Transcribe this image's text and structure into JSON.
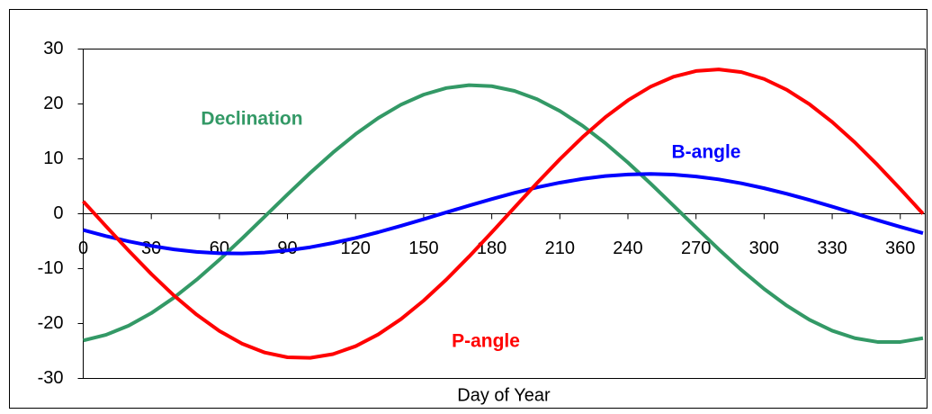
{
  "chart_data": {
    "type": "line",
    "x_label": "Day of Year",
    "x": [
      0,
      10,
      20,
      30,
      40,
      50,
      60,
      70,
      80,
      90,
      100,
      110,
      120,
      130,
      140,
      150,
      160,
      170,
      180,
      190,
      200,
      210,
      220,
      230,
      240,
      250,
      260,
      270,
      280,
      290,
      300,
      310,
      320,
      330,
      340,
      350,
      360,
      370
    ],
    "series": [
      {
        "name": "Declination",
        "color": "#339966",
        "values": [
          -23.09,
          -22.06,
          -20.39,
          -18.1,
          -15.28,
          -12.0,
          -8.39,
          -4.51,
          -0.5,
          3.52,
          7.44,
          11.13,
          14.5,
          17.44,
          19.87,
          21.7,
          22.9,
          23.42,
          23.24,
          22.38,
          20.86,
          18.72,
          16.03,
          12.87,
          9.32,
          5.49,
          1.51,
          -2.52,
          -6.47,
          -10.24,
          -13.69,
          -16.74,
          -19.32,
          -21.3,
          -22.66,
          -23.35,
          -23.35,
          -22.66
        ]
      },
      {
        "name": "B-angle",
        "color": "#0000ff",
        "values": [
          -2.97,
          -4.06,
          -5.03,
          -5.85,
          -6.5,
          -6.95,
          -7.2,
          -7.24,
          -7.06,
          -6.68,
          -6.1,
          -5.33,
          -4.41,
          -3.36,
          -2.21,
          -0.99,
          0.25,
          1.49,
          2.68,
          3.8,
          4.8,
          5.66,
          6.35,
          6.86,
          7.16,
          7.25,
          7.13,
          6.79,
          6.26,
          5.54,
          4.65,
          3.64,
          2.51,
          1.3,
          0.06,
          -1.18,
          -2.39,
          -3.53
        ]
      },
      {
        "name": "P-angle",
        "color": "#ff0000",
        "values": [
          2.26,
          -2.26,
          -6.71,
          -10.97,
          -14.9,
          -18.39,
          -21.35,
          -23.66,
          -25.28,
          -26.15,
          -26.25,
          -25.57,
          -24.13,
          -21.98,
          -19.19,
          -15.82,
          -11.99,
          -7.8,
          -3.39,
          1.13,
          5.62,
          9.93,
          13.95,
          17.57,
          20.66,
          23.15,
          24.94,
          26.0,
          26.29,
          25.8,
          24.55,
          22.58,
          19.94,
          16.71,
          12.99,
          8.88,
          4.5,
          0
        ]
      }
    ],
    "xlim": [
      0,
      371
    ],
    "xticks": [
      0,
      30,
      60,
      90,
      120,
      150,
      180,
      210,
      240,
      270,
      300,
      330,
      360
    ],
    "ylim": [
      -30,
      30
    ],
    "yticks": [
      -30,
      -20,
      -10,
      0,
      10,
      20,
      30
    ],
    "grid": false
  }
}
